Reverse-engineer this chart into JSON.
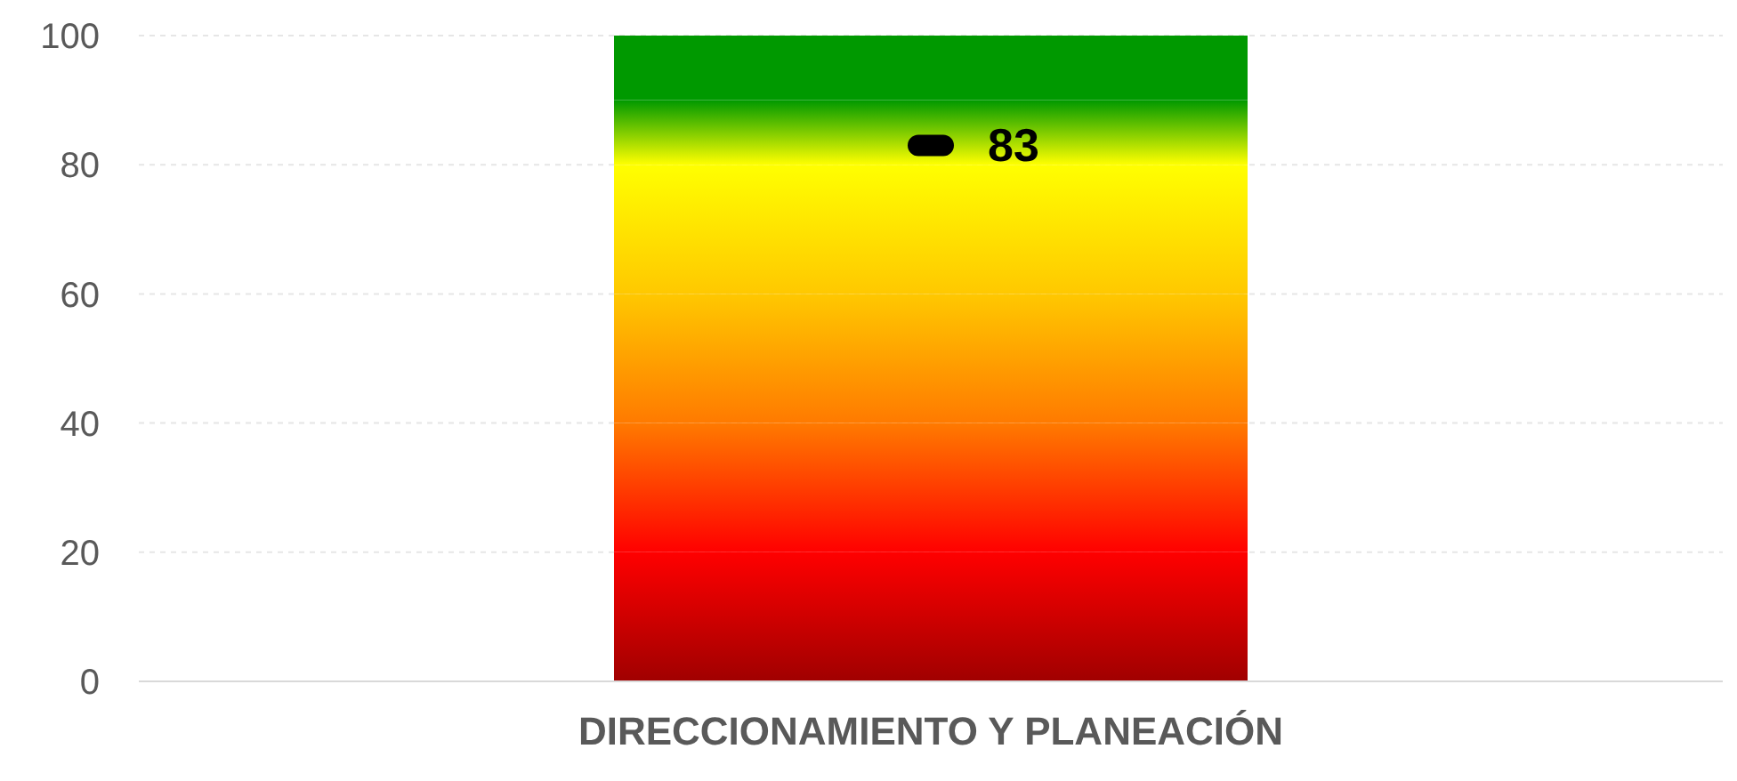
{
  "chart_data": {
    "type": "bar",
    "stacked": true,
    "categories": [
      "DIRECCIONAMIENTO Y PLANEACIÓN"
    ],
    "series": [
      {
        "color": "#a00000",
        "values": [
          20
        ]
      },
      {
        "color": "#ff0000",
        "values": [
          20
        ]
      },
      {
        "color": "#ff7a00",
        "values": [
          20
        ]
      },
      {
        "color": "#ffc800",
        "values": [
          20
        ]
      },
      {
        "color": "#ffff00",
        "values": [
          10
        ]
      },
      {
        "color": "#009900",
        "values": [
          10
        ]
      },
      {
        "type": "scatter",
        "color": "#000000",
        "values": [
          83
        ],
        "value_labels": [
          "83"
        ]
      }
    ],
    "ylim": [
      0,
      100
    ],
    "yticks": [
      0,
      20,
      40,
      60,
      80,
      100
    ],
    "grid": "y"
  }
}
